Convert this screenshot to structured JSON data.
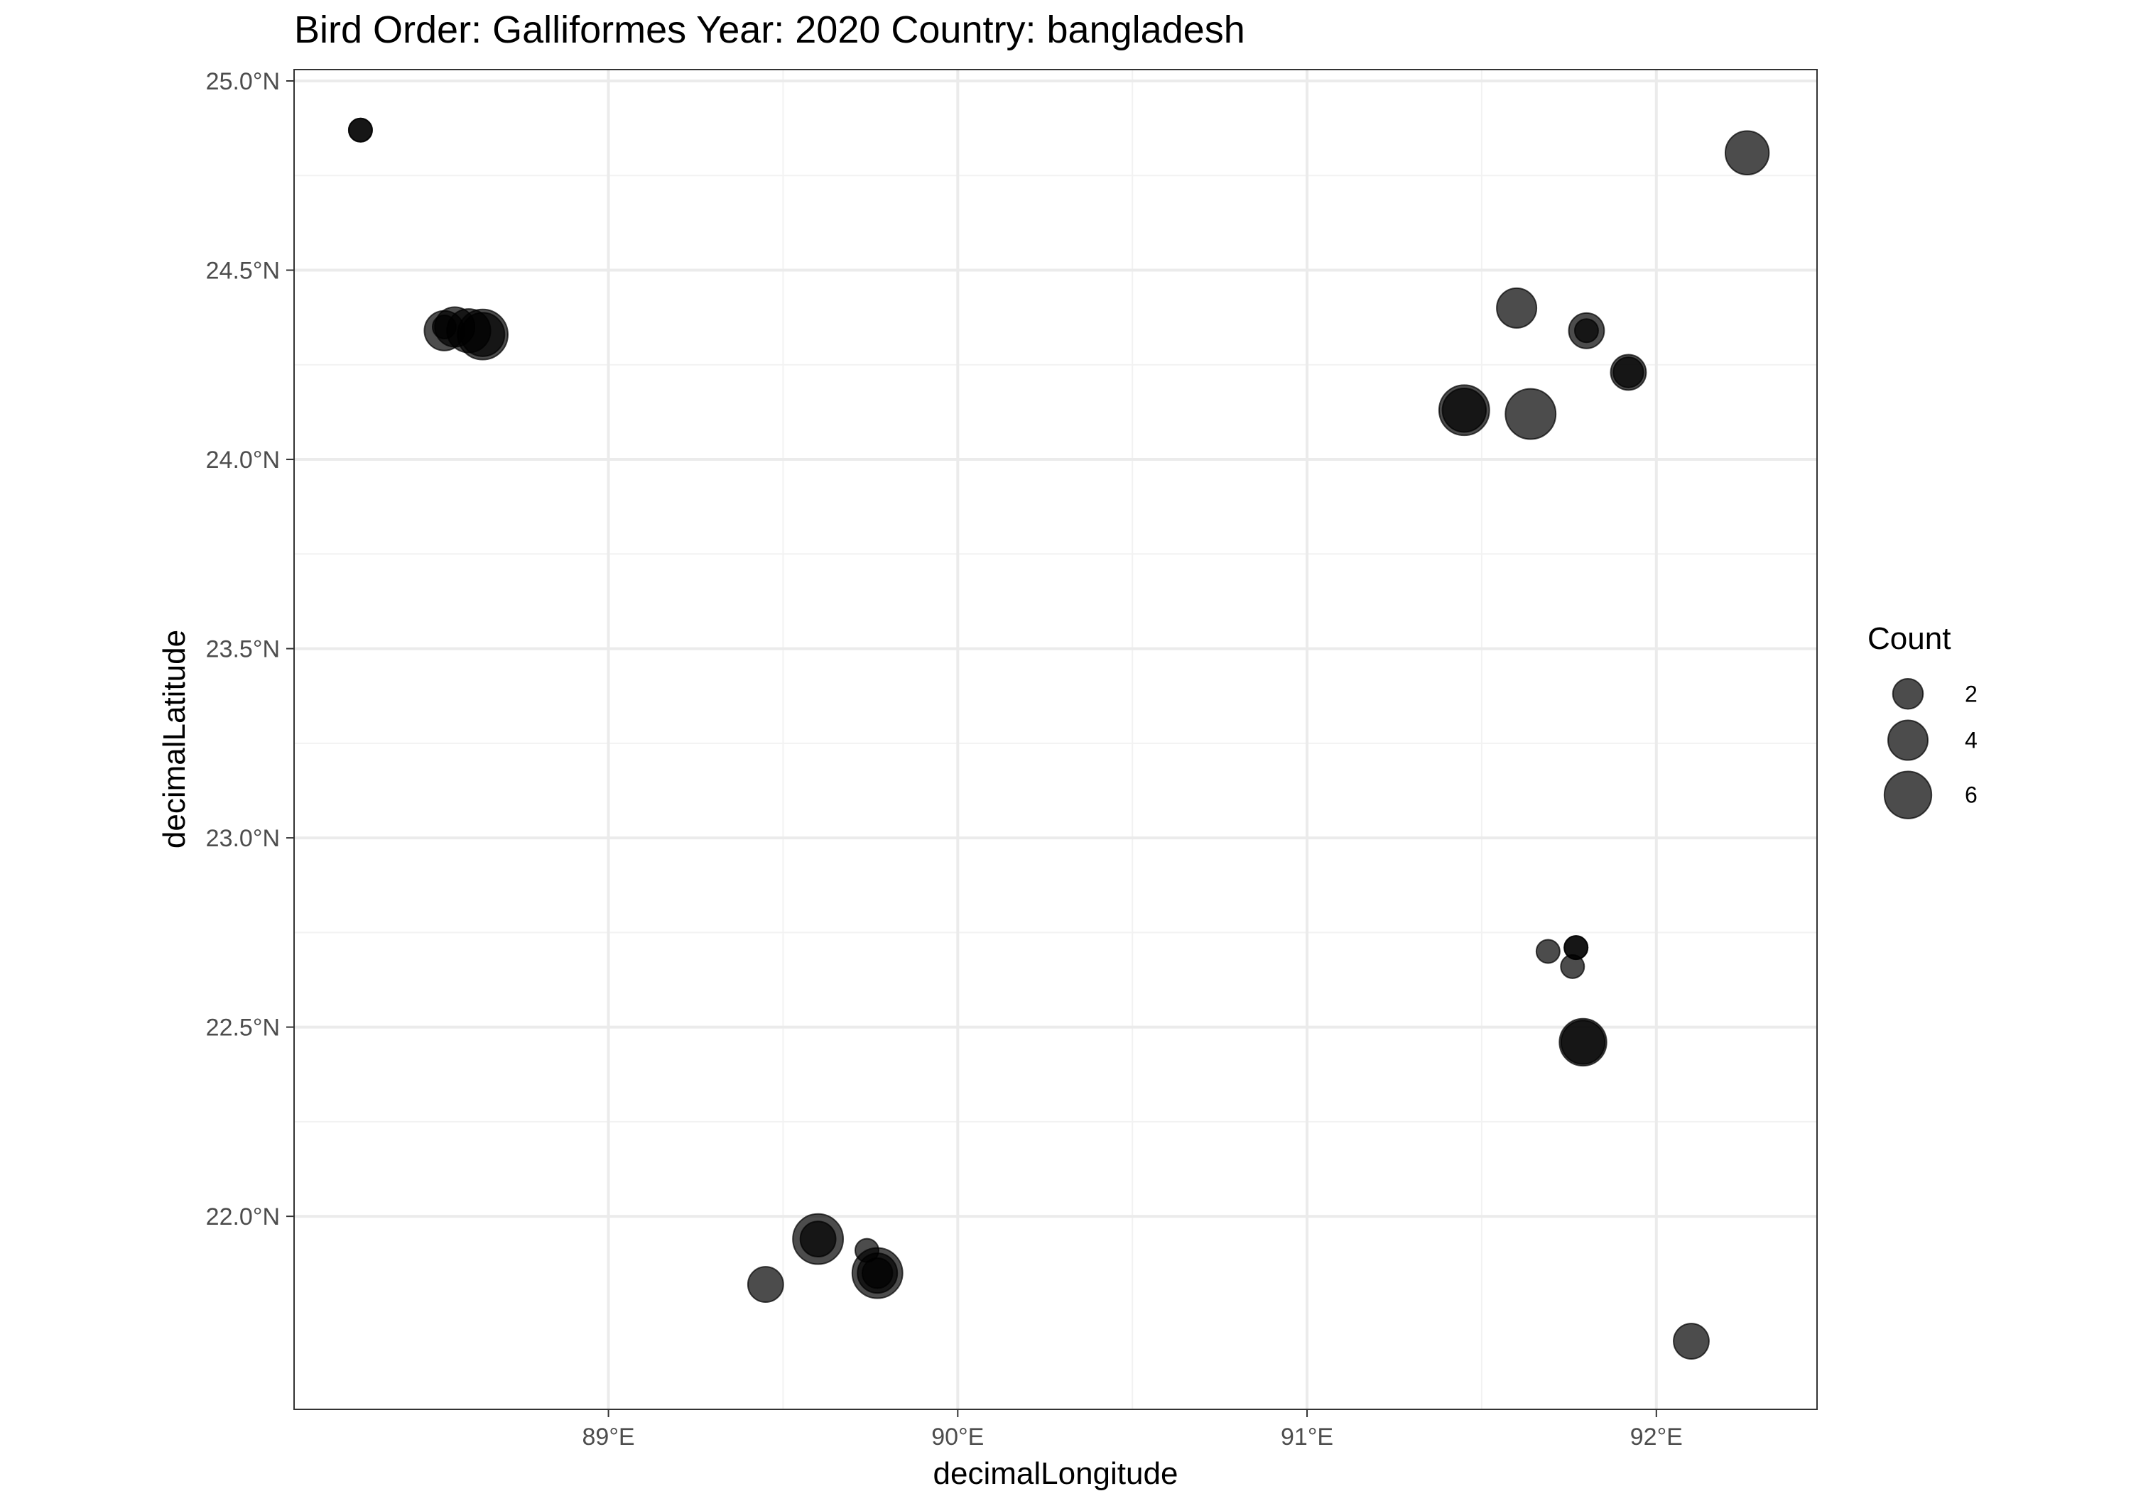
{
  "chart_data": {
    "type": "scatter",
    "title": "Bird Order: Galliformes Year: 2020 Country: bangladesh",
    "xlabel": "decimalLongitude",
    "ylabel": "decimalLatitude",
    "xlim": [
      88.1,
      92.46
    ],
    "ylim": [
      21.49,
      25.03
    ],
    "x_ticks": [
      89,
      90,
      91,
      92
    ],
    "x_tick_labels": [
      "89°E",
      "90°E",
      "91°E",
      "92°E"
    ],
    "y_ticks": [
      22.0,
      22.5,
      23.0,
      23.5,
      24.0,
      24.5,
      25.0
    ],
    "y_tick_labels": [
      "22.0°N",
      "22.5°N",
      "23.0°N",
      "23.5°N",
      "24.0°N",
      "24.5°N",
      "25.0°N"
    ],
    "grid": true,
    "point_color": "#000000",
    "point_opacity": 0.7,
    "size_legend": {
      "title": "Count",
      "values": [
        2,
        4,
        6
      ],
      "labels": [
        "2",
        "4",
        "6"
      ],
      "position": "right"
    },
    "points": [
      {
        "x": 88.29,
        "y": 24.87,
        "count": 1
      },
      {
        "x": 88.29,
        "y": 24.87,
        "count": 1
      },
      {
        "x": 88.53,
        "y": 24.34,
        "count": 4
      },
      {
        "x": 88.53,
        "y": 24.35,
        "count": 1
      },
      {
        "x": 88.56,
        "y": 24.35,
        "count": 4
      },
      {
        "x": 88.6,
        "y": 24.34,
        "count": 5
      },
      {
        "x": 88.64,
        "y": 24.33,
        "count": 7
      },
      {
        "x": 88.64,
        "y": 24.33,
        "count": 5
      },
      {
        "x": 89.45,
        "y": 21.82,
        "count": 3
      },
      {
        "x": 89.6,
        "y": 21.94,
        "count": 7
      },
      {
        "x": 89.6,
        "y": 21.94,
        "count": 3
      },
      {
        "x": 89.74,
        "y": 21.91,
        "count": 1
      },
      {
        "x": 89.77,
        "y": 21.85,
        "count": 7
      },
      {
        "x": 89.77,
        "y": 21.85,
        "count": 4
      },
      {
        "x": 89.77,
        "y": 21.85,
        "count": 2
      },
      {
        "x": 91.45,
        "y": 24.13,
        "count": 7
      },
      {
        "x": 91.45,
        "y": 24.13,
        "count": 5
      },
      {
        "x": 91.6,
        "y": 24.4,
        "count": 4
      },
      {
        "x": 91.64,
        "y": 24.12,
        "count": 7
      },
      {
        "x": 91.69,
        "y": 22.7,
        "count": 1
      },
      {
        "x": 91.76,
        "y": 22.66,
        "count": 1
      },
      {
        "x": 91.77,
        "y": 22.71,
        "count": 1
      },
      {
        "x": 91.77,
        "y": 22.71,
        "count": 1
      },
      {
        "x": 91.79,
        "y": 22.46,
        "count": 6
      },
      {
        "x": 91.79,
        "y": 22.46,
        "count": 5
      },
      {
        "x": 91.8,
        "y": 24.34,
        "count": 3
      },
      {
        "x": 91.8,
        "y": 24.34,
        "count": 1
      },
      {
        "x": 91.92,
        "y": 24.23,
        "count": 3
      },
      {
        "x": 91.92,
        "y": 24.23,
        "count": 2
      },
      {
        "x": 92.1,
        "y": 21.67,
        "count": 3
      },
      {
        "x": 92.26,
        "y": 24.81,
        "count": 5
      }
    ]
  }
}
